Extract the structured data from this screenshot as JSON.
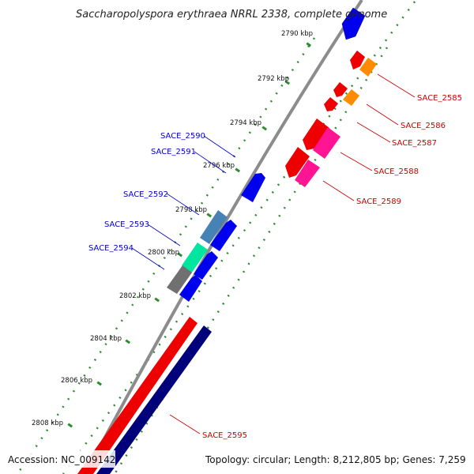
{
  "title": "Saccharopolyspora erythraea NRRL 2338, complete genome",
  "footer": {
    "accession": "Accession: NC_009142",
    "summary": "Topology: circular; Length: 8,212,805 bp; Genes: 7,259"
  },
  "colors": {
    "backbone": "#8c8c8c",
    "ticks": "#2e8b2e",
    "forward_label": "#cc0000",
    "reverse_label": "#0000cc"
  },
  "scale_ticks": [
    {
      "label": "2790 kbp"
    },
    {
      "label": "2792 kbp"
    },
    {
      "label": "2794 kbp"
    },
    {
      "label": "2796 kbp"
    },
    {
      "label": "2798 kbp"
    },
    {
      "label": "2800 kbp"
    },
    {
      "label": "2802 kbp"
    },
    {
      "label": "2804 kbp"
    },
    {
      "label": "2806 kbp"
    },
    {
      "label": "2808 kbp"
    }
  ],
  "forward_labels": [
    {
      "text": "SACE_2585"
    },
    {
      "text": "SACE_2586"
    },
    {
      "text": "SACE_2587"
    },
    {
      "text": "SACE_2588"
    },
    {
      "text": "SACE_2589"
    },
    {
      "text": "SACE_2595"
    }
  ],
  "reverse_labels": [
    {
      "text": "SACE_2590"
    },
    {
      "text": "SACE_2591"
    },
    {
      "text": "SACE_2592"
    },
    {
      "text": "SACE_2593"
    },
    {
      "text": "SACE_2594"
    }
  ]
}
